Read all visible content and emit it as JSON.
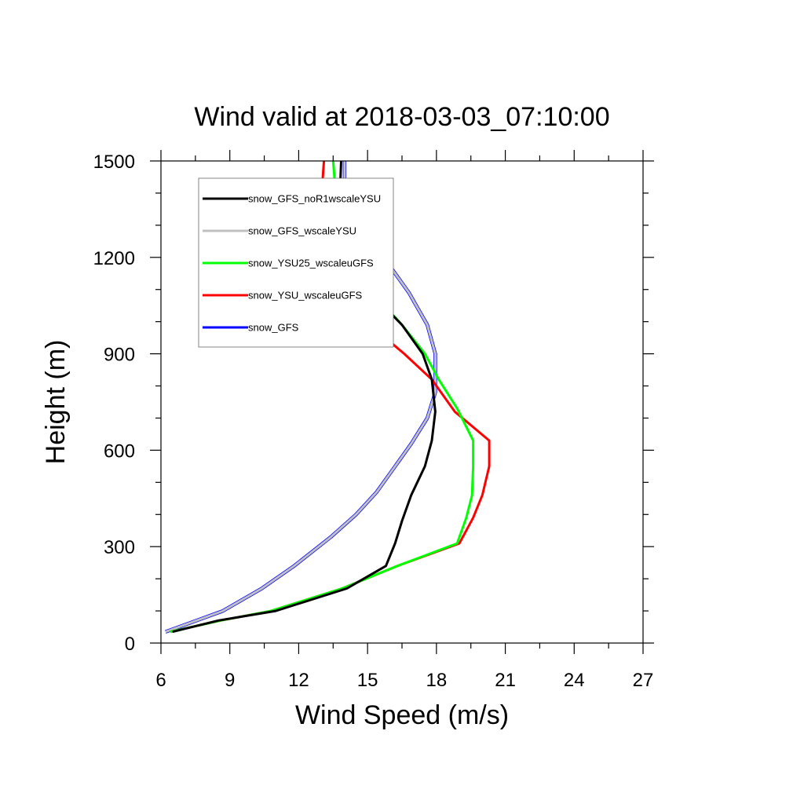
{
  "chart_data": {
    "type": "line",
    "title": "Wind valid at 2018-03-03_07:10:00",
    "xlabel": "Wind Speed (m/s)",
    "ylabel": "Height (m)",
    "xlim": [
      6,
      27
    ],
    "ylim": [
      0,
      1500
    ],
    "xticks": [
      6,
      9,
      12,
      15,
      18,
      21,
      24,
      27
    ],
    "yticks": [
      0,
      300,
      600,
      900,
      1200,
      1500
    ],
    "legend_position": "top-left",
    "grid": false,
    "series": [
      {
        "name": "snow_GFS_noR1wscaleYSU",
        "color": "#000000",
        "x": [
          6.5,
          8.5,
          11.0,
          14.1,
          15.8,
          16.2,
          16.5,
          16.9,
          17.5,
          17.8,
          17.95,
          17.8,
          17.4,
          16.5,
          15.0,
          14.2,
          13.9,
          13.8,
          13.85
        ],
        "y": [
          35,
          70,
          100,
          170,
          240,
          310,
          380,
          460,
          550,
          630,
          720,
          820,
          900,
          990,
          1100,
          1200,
          1300,
          1410,
          1500
        ]
      },
      {
        "name": "snow_GFS_wscaleYSU",
        "color": "#c0c0c0",
        "x": [
          6.2,
          8.7,
          10.4,
          11.8,
          13.4,
          14.5,
          15.4,
          16.1,
          16.9,
          17.6,
          17.95,
          17.95,
          17.95,
          17.6,
          16.8,
          15.9,
          14.8,
          14.1,
          14.0,
          14.0
        ],
        "y": [
          35,
          100,
          170,
          240,
          330,
          400,
          470,
          540,
          620,
          700,
          780,
          850,
          900,
          990,
          1090,
          1180,
          1260,
          1340,
          1420,
          1500
        ]
      },
      {
        "name": "snow_GFS",
        "color": "#0000ff",
        "x": [
          6.2,
          8.7,
          10.4,
          11.8,
          13.4,
          14.5,
          15.4,
          16.1,
          16.9,
          17.6,
          17.95,
          17.95,
          17.95,
          17.6,
          16.8,
          15.9,
          14.8,
          14.1,
          14.0,
          14.0
        ],
        "y": [
          35,
          100,
          170,
          240,
          330,
          400,
          470,
          540,
          620,
          700,
          780,
          850,
          900,
          990,
          1090,
          1180,
          1260,
          1340,
          1420,
          1500
        ]
      },
      {
        "name": "snow_YSU25_wscaleuGFS",
        "color": "#00ff00",
        "x": [
          6.4,
          8.6,
          10.8,
          13.9,
          16.3,
          18.9,
          19.3,
          19.55,
          19.6,
          19.6,
          18.9,
          18.1,
          17.5,
          16.5,
          15.1,
          14.2,
          13.8,
          13.6,
          13.5
        ],
        "y": [
          35,
          70,
          100,
          170,
          240,
          310,
          390,
          460,
          550,
          630,
          730,
          820,
          900,
          990,
          1100,
          1200,
          1300,
          1410,
          1500
        ]
      },
      {
        "name": "snow_YSU_wscaleuGFS",
        "color": "#ff0000",
        "x": [
          6.4,
          8.6,
          10.8,
          13.9,
          16.3,
          19.0,
          19.6,
          20.0,
          20.3,
          20.3,
          18.8,
          17.8,
          16.6,
          15.1,
          14.0,
          13.1,
          12.9,
          13.0,
          13.1
        ],
        "y": [
          35,
          70,
          100,
          170,
          240,
          310,
          390,
          460,
          550,
          630,
          720,
          820,
          900,
          990,
          1090,
          1170,
          1270,
          1400,
          1500
        ]
      }
    ]
  },
  "legend_order": [
    "snow_GFS_noR1wscaleYSU",
    "snow_GFS_wscaleYSU",
    "snow_YSU25_wscaleuGFS",
    "snow_YSU_wscaleuGFS",
    "snow_GFS"
  ]
}
